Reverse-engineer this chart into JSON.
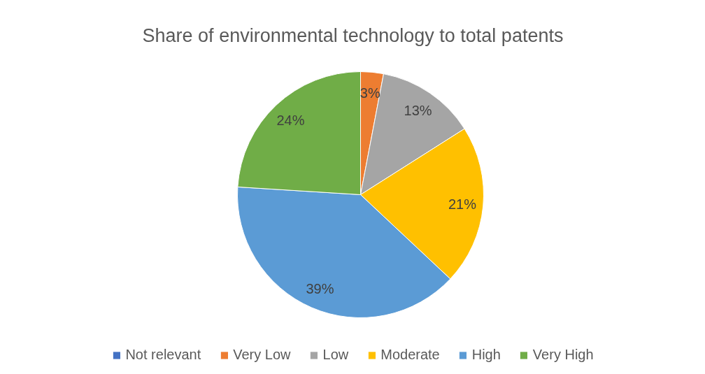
{
  "chart_data": {
    "type": "pie",
    "title": "Share of environmental technology to total patents",
    "categories": [
      "Not relevant",
      "Very Low",
      "Low",
      "Moderate",
      "High",
      "Very High"
    ],
    "values": [
      0,
      3,
      13,
      21,
      39,
      24
    ],
    "colors": [
      "#4472c4",
      "#ed7d31",
      "#a5a5a5",
      "#ffc000",
      "#5b9bd5",
      "#70ad47"
    ],
    "value_labels": [
      null,
      "3%",
      "13%",
      "21%",
      "39%",
      "24%"
    ],
    "legend": "bottom"
  }
}
